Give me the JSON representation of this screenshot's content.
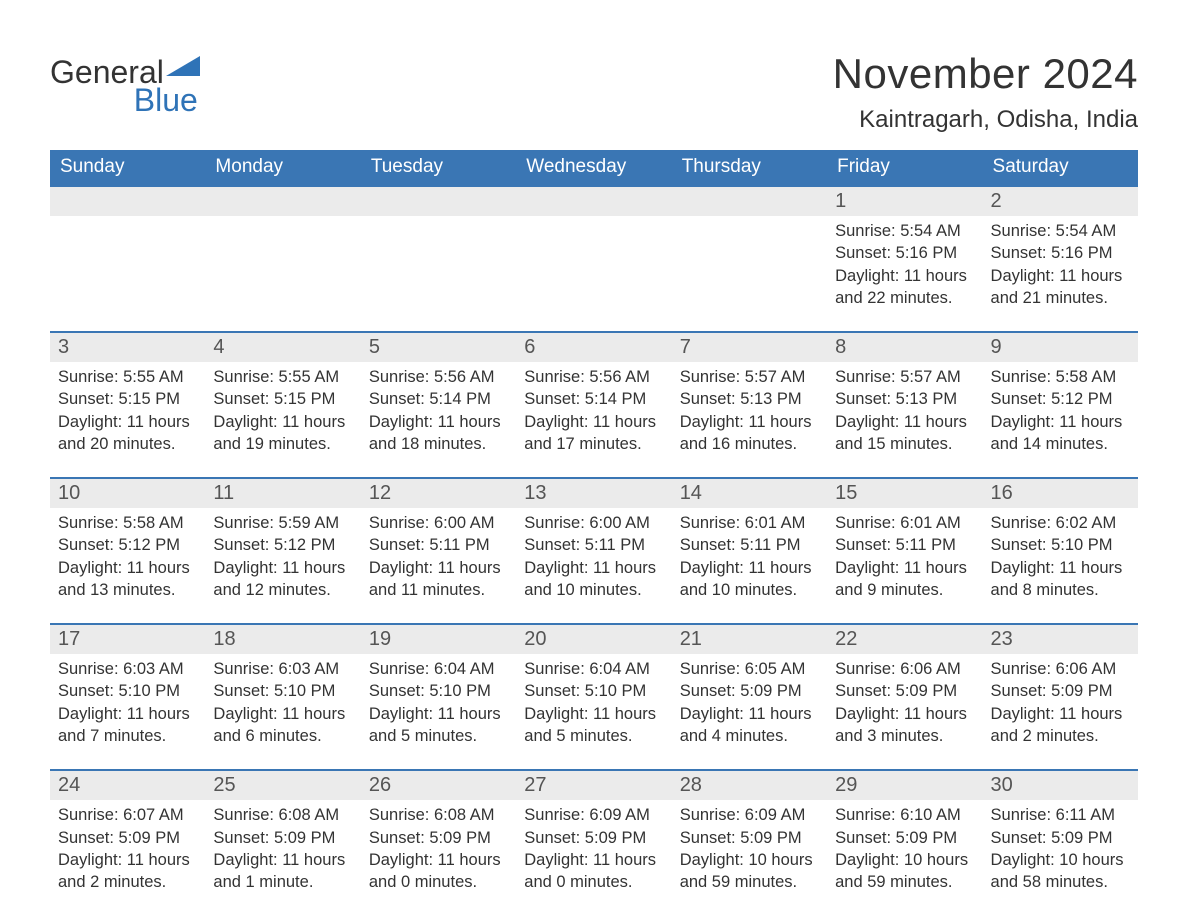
{
  "logo": {
    "word1": "General",
    "word2": "Blue"
  },
  "title": "November 2024",
  "location": "Kaintragarh, Odisha, India",
  "colors": {
    "header_bg": "#3a76b4",
    "header_text": "#ffffff",
    "daynum_bg": "#ebebeb",
    "text": "#333333",
    "logo_blue": "#2f73b7",
    "page_bg": "#ffffff"
  },
  "weekdays": [
    "Sunday",
    "Monday",
    "Tuesday",
    "Wednesday",
    "Thursday",
    "Friday",
    "Saturday"
  ],
  "weeks": [
    [
      null,
      null,
      null,
      null,
      null,
      {
        "day": "1",
        "sunrise": "Sunrise: 5:54 AM",
        "sunset": "Sunset: 5:16 PM",
        "daylight": "Daylight: 11 hours and 22 minutes."
      },
      {
        "day": "2",
        "sunrise": "Sunrise: 5:54 AM",
        "sunset": "Sunset: 5:16 PM",
        "daylight": "Daylight: 11 hours and 21 minutes."
      }
    ],
    [
      {
        "day": "3",
        "sunrise": "Sunrise: 5:55 AM",
        "sunset": "Sunset: 5:15 PM",
        "daylight": "Daylight: 11 hours and 20 minutes."
      },
      {
        "day": "4",
        "sunrise": "Sunrise: 5:55 AM",
        "sunset": "Sunset: 5:15 PM",
        "daylight": "Daylight: 11 hours and 19 minutes."
      },
      {
        "day": "5",
        "sunrise": "Sunrise: 5:56 AM",
        "sunset": "Sunset: 5:14 PM",
        "daylight": "Daylight: 11 hours and 18 minutes."
      },
      {
        "day": "6",
        "sunrise": "Sunrise: 5:56 AM",
        "sunset": "Sunset: 5:14 PM",
        "daylight": "Daylight: 11 hours and 17 minutes."
      },
      {
        "day": "7",
        "sunrise": "Sunrise: 5:57 AM",
        "sunset": "Sunset: 5:13 PM",
        "daylight": "Daylight: 11 hours and 16 minutes."
      },
      {
        "day": "8",
        "sunrise": "Sunrise: 5:57 AM",
        "sunset": "Sunset: 5:13 PM",
        "daylight": "Daylight: 11 hours and 15 minutes."
      },
      {
        "day": "9",
        "sunrise": "Sunrise: 5:58 AM",
        "sunset": "Sunset: 5:12 PM",
        "daylight": "Daylight: 11 hours and 14 minutes."
      }
    ],
    [
      {
        "day": "10",
        "sunrise": "Sunrise: 5:58 AM",
        "sunset": "Sunset: 5:12 PM",
        "daylight": "Daylight: 11 hours and 13 minutes."
      },
      {
        "day": "11",
        "sunrise": "Sunrise: 5:59 AM",
        "sunset": "Sunset: 5:12 PM",
        "daylight": "Daylight: 11 hours and 12 minutes."
      },
      {
        "day": "12",
        "sunrise": "Sunrise: 6:00 AM",
        "sunset": "Sunset: 5:11 PM",
        "daylight": "Daylight: 11 hours and 11 minutes."
      },
      {
        "day": "13",
        "sunrise": "Sunrise: 6:00 AM",
        "sunset": "Sunset: 5:11 PM",
        "daylight": "Daylight: 11 hours and 10 minutes."
      },
      {
        "day": "14",
        "sunrise": "Sunrise: 6:01 AM",
        "sunset": "Sunset: 5:11 PM",
        "daylight": "Daylight: 11 hours and 10 minutes."
      },
      {
        "day": "15",
        "sunrise": "Sunrise: 6:01 AM",
        "sunset": "Sunset: 5:11 PM",
        "daylight": "Daylight: 11 hours and 9 minutes."
      },
      {
        "day": "16",
        "sunrise": "Sunrise: 6:02 AM",
        "sunset": "Sunset: 5:10 PM",
        "daylight": "Daylight: 11 hours and 8 minutes."
      }
    ],
    [
      {
        "day": "17",
        "sunrise": "Sunrise: 6:03 AM",
        "sunset": "Sunset: 5:10 PM",
        "daylight": "Daylight: 11 hours and 7 minutes."
      },
      {
        "day": "18",
        "sunrise": "Sunrise: 6:03 AM",
        "sunset": "Sunset: 5:10 PM",
        "daylight": "Daylight: 11 hours and 6 minutes."
      },
      {
        "day": "19",
        "sunrise": "Sunrise: 6:04 AM",
        "sunset": "Sunset: 5:10 PM",
        "daylight": "Daylight: 11 hours and 5 minutes."
      },
      {
        "day": "20",
        "sunrise": "Sunrise: 6:04 AM",
        "sunset": "Sunset: 5:10 PM",
        "daylight": "Daylight: 11 hours and 5 minutes."
      },
      {
        "day": "21",
        "sunrise": "Sunrise: 6:05 AM",
        "sunset": "Sunset: 5:09 PM",
        "daylight": "Daylight: 11 hours and 4 minutes."
      },
      {
        "day": "22",
        "sunrise": "Sunrise: 6:06 AM",
        "sunset": "Sunset: 5:09 PM",
        "daylight": "Daylight: 11 hours and 3 minutes."
      },
      {
        "day": "23",
        "sunrise": "Sunrise: 6:06 AM",
        "sunset": "Sunset: 5:09 PM",
        "daylight": "Daylight: 11 hours and 2 minutes."
      }
    ],
    [
      {
        "day": "24",
        "sunrise": "Sunrise: 6:07 AM",
        "sunset": "Sunset: 5:09 PM",
        "daylight": "Daylight: 11 hours and 2 minutes."
      },
      {
        "day": "25",
        "sunrise": "Sunrise: 6:08 AM",
        "sunset": "Sunset: 5:09 PM",
        "daylight": "Daylight: 11 hours and 1 minute."
      },
      {
        "day": "26",
        "sunrise": "Sunrise: 6:08 AM",
        "sunset": "Sunset: 5:09 PM",
        "daylight": "Daylight: 11 hours and 0 minutes."
      },
      {
        "day": "27",
        "sunrise": "Sunrise: 6:09 AM",
        "sunset": "Sunset: 5:09 PM",
        "daylight": "Daylight: 11 hours and 0 minutes."
      },
      {
        "day": "28",
        "sunrise": "Sunrise: 6:09 AM",
        "sunset": "Sunset: 5:09 PM",
        "daylight": "Daylight: 10 hours and 59 minutes."
      },
      {
        "day": "29",
        "sunrise": "Sunrise: 6:10 AM",
        "sunset": "Sunset: 5:09 PM",
        "daylight": "Daylight: 10 hours and 59 minutes."
      },
      {
        "day": "30",
        "sunrise": "Sunrise: 6:11 AM",
        "sunset": "Sunset: 5:09 PM",
        "daylight": "Daylight: 10 hours and 58 minutes."
      }
    ]
  ]
}
